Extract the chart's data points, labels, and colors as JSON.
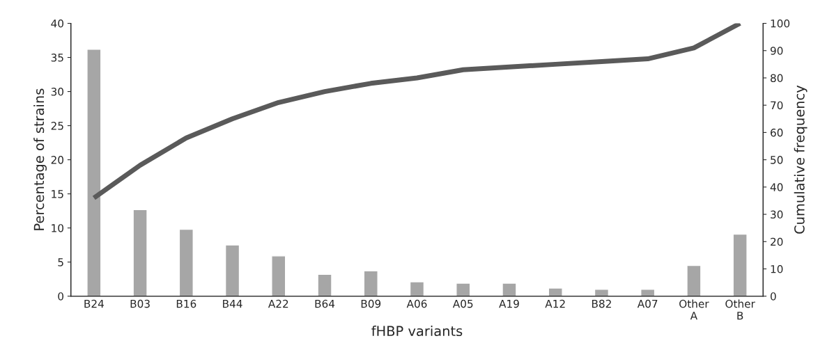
{
  "chart_data": {
    "type": "bar",
    "xlabel": "fHBP variants",
    "ylabel": "Percentage of strains",
    "y2label": "Cumulative frequency",
    "categories": [
      "B24",
      "B03",
      "B16",
      "B44",
      "A22",
      "B64",
      "B09",
      "A06",
      "A05",
      "A19",
      "A12",
      "B82",
      "A07",
      "Other\nA",
      "Other\nB"
    ],
    "series": [
      {
        "color": "#a6a6a6",
        "values": [
          36.2,
          12.7,
          9.8,
          7.5,
          5.9,
          3.2,
          3.7,
          2.1,
          1.9,
          1.9,
          1.2,
          1.0,
          1.0,
          4.5,
          9.1
        ]
      },
      {
        "type": "line",
        "axis": "y2",
        "color": "#5a5a5a",
        "values": [
          36,
          48,
          58,
          65,
          71,
          75,
          78,
          80,
          83,
          84,
          85,
          86,
          87,
          91,
          100
        ]
      }
    ],
    "ylim": [
      0,
      40
    ],
    "yticks": [
      0,
      5,
      10,
      15,
      20,
      25,
      30,
      35,
      40
    ],
    "y2lim": [
      0,
      100
    ],
    "y2ticks": [
      0,
      10,
      20,
      30,
      40,
      50,
      60,
      70,
      80,
      90,
      100
    ],
    "grid": false,
    "legend": false
  }
}
